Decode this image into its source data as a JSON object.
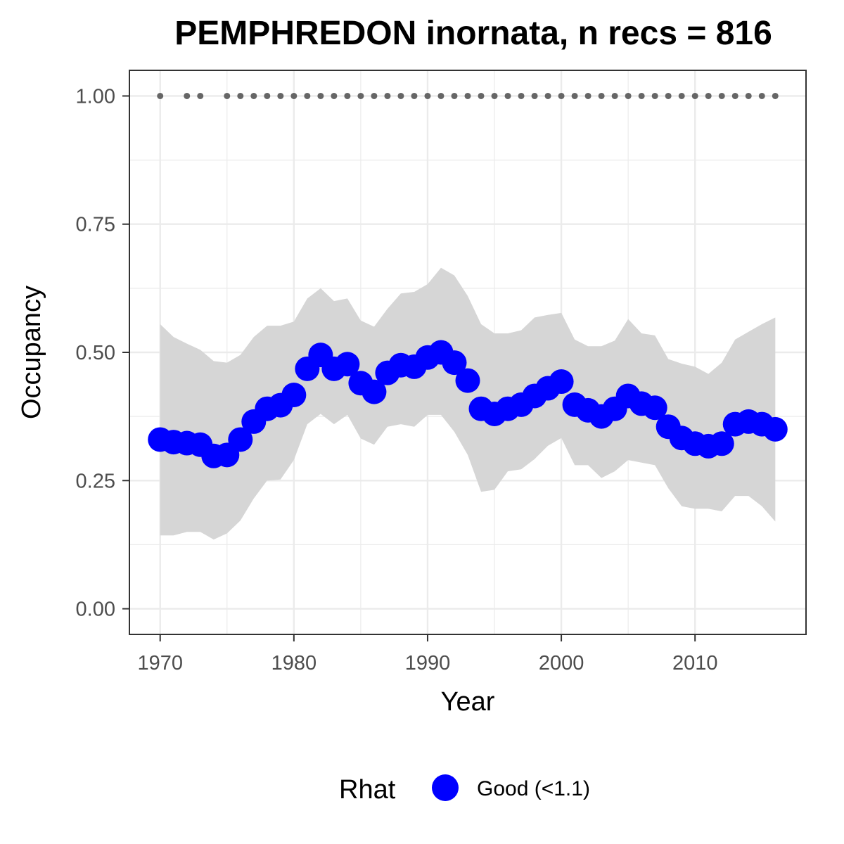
{
  "chart_data": {
    "type": "line",
    "title": "PEMPHREDON inornata, n recs = 816",
    "xlabel": "Year",
    "ylabel": "Occupancy",
    "xlim": [
      1967.7,
      2018.3
    ],
    "ylim": [
      -0.05,
      1.05
    ],
    "x_ticks": [
      1970,
      1980,
      1990,
      2000,
      2010
    ],
    "x_tick_labels": [
      "1970",
      "1980",
      "1990",
      "2000",
      "2010"
    ],
    "y_ticks": [
      0,
      0.25,
      0.5,
      0.75,
      1.0
    ],
    "y_tick_labels": [
      "0.00",
      "0.25",
      "0.50",
      "0.75",
      "1.00"
    ],
    "grid": true,
    "legend_position": "bottom",
    "legend": {
      "title": "Rhat",
      "entries": [
        {
          "label": "Good (<1.1)",
          "color": "#0000ff"
        }
      ]
    },
    "colors": {
      "series": "#0000ff",
      "ribbon": "#d6d6d6",
      "record_dots": "#666666",
      "panel_border": "#333333",
      "grid": "#ebebeb"
    },
    "series": [
      {
        "x": [
          1970,
          1971,
          1972,
          1973,
          1974,
          1975,
          1976,
          1977,
          1978,
          1979,
          1980,
          1981,
          1982,
          1983,
          1984,
          1985,
          1986,
          1987,
          1988,
          1989,
          1990,
          1991,
          1992,
          1993,
          1994,
          1995,
          1996,
          1997,
          1998,
          1999,
          2000,
          2001,
          2002,
          2003,
          2004,
          2005,
          2006,
          2007,
          2008,
          2009,
          2010,
          2011,
          2012,
          2013,
          2014,
          2015,
          2016
        ],
        "values": [
          0.33,
          0.325,
          0.323,
          0.32,
          0.298,
          0.3,
          0.33,
          0.365,
          0.39,
          0.397,
          0.417,
          0.468,
          0.495,
          0.468,
          0.477,
          0.44,
          0.423,
          0.46,
          0.475,
          0.472,
          0.49,
          0.5,
          0.48,
          0.445,
          0.39,
          0.38,
          0.39,
          0.398,
          0.415,
          0.43,
          0.443,
          0.398,
          0.387,
          0.375,
          0.39,
          0.415,
          0.4,
          0.392,
          0.355,
          0.333,
          0.322,
          0.317,
          0.322,
          0.36,
          0.365,
          0.36,
          0.35
        ],
        "lower": [
          0.143,
          0.143,
          0.15,
          0.15,
          0.135,
          0.147,
          0.172,
          0.215,
          0.25,
          0.252,
          0.29,
          0.36,
          0.38,
          0.36,
          0.378,
          0.332,
          0.32,
          0.355,
          0.36,
          0.355,
          0.378,
          0.378,
          0.345,
          0.3,
          0.228,
          0.232,
          0.268,
          0.272,
          0.292,
          0.318,
          0.333,
          0.28,
          0.28,
          0.255,
          0.268,
          0.29,
          0.285,
          0.28,
          0.235,
          0.2,
          0.195,
          0.195,
          0.19,
          0.22,
          0.22,
          0.2,
          0.17
        ],
        "upper": [
          0.555,
          0.53,
          0.517,
          0.505,
          0.483,
          0.48,
          0.495,
          0.53,
          0.552,
          0.552,
          0.56,
          0.605,
          0.625,
          0.6,
          0.605,
          0.562,
          0.55,
          0.585,
          0.615,
          0.618,
          0.633,
          0.665,
          0.65,
          0.61,
          0.555,
          0.537,
          0.537,
          0.543,
          0.568,
          0.573,
          0.577,
          0.525,
          0.512,
          0.512,
          0.523,
          0.565,
          0.537,
          0.533,
          0.487,
          0.478,
          0.472,
          0.458,
          0.48,
          0.525,
          0.54,
          0.555,
          0.568
        ]
      }
    ],
    "record_years": [
      1970,
      1972,
      1973,
      1975,
      1976,
      1977,
      1978,
      1979,
      1980,
      1981,
      1982,
      1983,
      1984,
      1985,
      1986,
      1987,
      1988,
      1989,
      1990,
      1991,
      1992,
      1993,
      1994,
      1995,
      1996,
      1997,
      1998,
      1999,
      2000,
      2001,
      2002,
      2003,
      2004,
      2005,
      2006,
      2007,
      2008,
      2009,
      2010,
      2011,
      2012,
      2013,
      2014,
      2015,
      2016
    ],
    "record_level": 1.0
  }
}
